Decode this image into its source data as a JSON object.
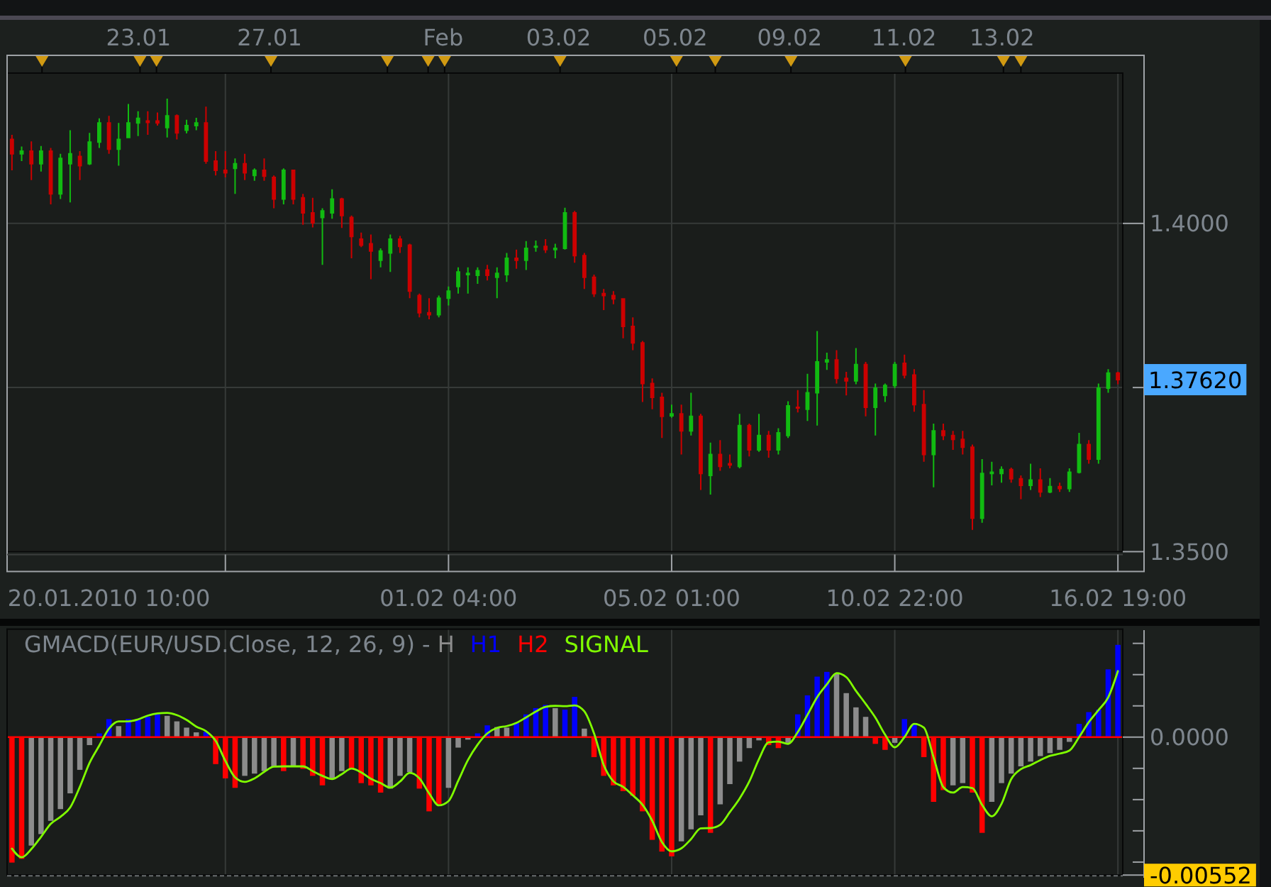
{
  "chart_data": [
    {
      "type": "candlestick",
      "categories": [
        null,
        null,
        null,
        null,
        null,
        null,
        null,
        null,
        null,
        null,
        "20.01.2010 10:00",
        null,
        null,
        null,
        null,
        null,
        null,
        null,
        null,
        null,
        null,
        null,
        null,
        null,
        null,
        null,
        null,
        null,
        null,
        null,
        null,
        null,
        null,
        null,
        null,
        null,
        null,
        null,
        null,
        null,
        null,
        null,
        null,
        null,
        null,
        "01.02 04:00",
        null,
        null,
        null,
        null,
        null,
        null,
        null,
        null,
        null,
        null,
        null,
        null,
        null,
        null,
        null,
        null,
        null,
        null,
        null,
        null,
        null,
        null,
        "05.02 01:00",
        null,
        null,
        null,
        null,
        null,
        null,
        null,
        null,
        null,
        null,
        null,
        null,
        null,
        null,
        null,
        null,
        null,
        null,
        null,
        null,
        null,
        null,
        "10.02 22:00",
        null,
        null,
        null,
        null,
        null,
        null,
        null,
        null,
        null,
        null,
        null,
        null,
        null,
        null,
        null,
        null,
        null,
        null,
        null,
        null,
        null,
        null,
        "16.02 19:00"
      ],
      "ohlc": [
        [
          1.4128,
          1.4135,
          1.4081,
          1.4106
        ],
        [
          1.4106,
          1.4117,
          1.4095,
          1.411
        ],
        [
          1.411,
          1.4125,
          1.4066,
          1.4091
        ],
        [
          1.4091,
          1.4118,
          1.4079,
          1.411
        ],
        [
          1.411,
          1.4115,
          1.4029,
          1.4045
        ],
        [
          1.4045,
          1.4106,
          1.4037,
          1.4099
        ],
        [
          1.4091,
          1.4142,
          1.4032,
          1.4106
        ],
        [
          1.4102,
          1.411,
          1.4066,
          1.4088
        ],
        [
          1.4091,
          1.4138,
          1.4089,
          1.4124
        ],
        [
          1.4124,
          1.416,
          1.4115,
          1.4153
        ],
        [
          1.4153,
          1.4164,
          1.4106,
          1.4113
        ],
        [
          1.4113,
          1.4153,
          1.4088,
          1.4128
        ],
        [
          1.4131,
          1.4182,
          1.413,
          1.4153
        ],
        [
          1.4153,
          1.4171,
          1.4133,
          1.416
        ],
        [
          1.4156,
          1.4171,
          1.4135,
          1.4154
        ],
        [
          1.4156,
          1.4169,
          1.4149,
          1.4153
        ],
        [
          1.4146,
          1.419,
          1.4131,
          1.4164
        ],
        [
          1.4164,
          1.4166,
          1.4128,
          1.4138
        ],
        [
          1.4142,
          1.4158,
          1.4137,
          1.4149
        ],
        [
          1.4149,
          1.4161,
          1.4142,
          1.4153
        ],
        [
          1.4153,
          1.4178,
          1.4091,
          1.4095
        ],
        [
          1.4095,
          1.411,
          1.4073,
          1.4081
        ],
        [
          1.4081,
          1.411,
          1.407,
          1.4077
        ],
        [
          1.4084,
          1.4099,
          1.4045,
          1.4091
        ],
        [
          1.4091,
          1.4106,
          1.4066,
          1.4077
        ],
        [
          1.4073,
          1.4084,
          1.4065,
          1.4081
        ],
        [
          1.4081,
          1.4099,
          1.4065,
          1.4072
        ],
        [
          1.407,
          1.4073,
          1.4023,
          1.4037
        ],
        [
          1.4037,
          1.4084,
          1.4029,
          1.4081
        ],
        [
          1.4081,
          1.4082,
          1.4029,
          1.4037
        ],
        [
          1.4039,
          1.4045,
          1.3998,
          1.4016
        ],
        [
          1.4016,
          1.4039,
          1.3994,
          1.4001
        ],
        [
          1.4009,
          1.4023,
          1.3937,
          1.4019
        ],
        [
          1.4016,
          1.4052,
          1.4007,
          1.4037
        ],
        [
          1.4037,
          1.4039,
          1.3993,
          1.4012
        ],
        [
          1.4009,
          1.4012,
          1.3947,
          1.398
        ],
        [
          1.3976,
          1.3986,
          1.3964,
          1.3967
        ],
        [
          1.3969,
          1.3983,
          1.3915,
          1.3958
        ],
        [
          1.3944,
          1.3962,
          1.3933,
          1.3958
        ],
        [
          1.3955,
          1.3983,
          1.3926,
          1.3976
        ],
        [
          1.3976,
          1.3981,
          1.3955,
          1.3965
        ],
        [
          1.3967,
          1.3969,
          1.3886,
          1.3897
        ],
        [
          1.389,
          1.3893,
          1.3857,
          1.3864
        ],
        [
          1.3864,
          1.3886,
          1.3854,
          1.3861
        ],
        [
          1.3861,
          1.389,
          1.3857,
          1.3886
        ],
        [
          1.3886,
          1.3904,
          1.3875,
          1.3897
        ],
        [
          1.3904,
          1.3933,
          1.3893,
          1.3926
        ],
        [
          1.3922,
          1.3933,
          1.3893,
          1.3924
        ],
        [
          1.3921,
          1.3933,
          1.3908,
          1.3928
        ],
        [
          1.3929,
          1.3937,
          1.3913,
          1.3921
        ],
        [
          1.3918,
          1.3933,
          1.3886,
          1.3924
        ],
        [
          1.3922,
          1.3955,
          1.3911,
          1.3947
        ],
        [
          1.3947,
          1.396,
          1.3931,
          1.3944
        ],
        [
          1.3944,
          1.3973,
          1.3929,
          1.3962
        ],
        [
          1.3964,
          1.3974,
          1.3957,
          1.3965
        ],
        [
          1.3965,
          1.3976,
          1.3955,
          1.396
        ],
        [
          1.396,
          1.3969,
          1.3947,
          1.3962
        ],
        [
          1.3962,
          1.4024,
          1.396,
          1.4016
        ],
        [
          1.4016,
          1.4019,
          1.394,
          1.3951
        ],
        [
          1.3951,
          1.3955,
          1.39,
          1.3918
        ],
        [
          1.3918,
          1.3922,
          1.3888,
          1.3893
        ],
        [
          1.3893,
          1.39,
          1.3868,
          1.389
        ],
        [
          1.389,
          1.3897,
          1.3877,
          1.3885
        ],
        [
          1.3885,
          1.3886,
          1.3825,
          1.3843
        ],
        [
          1.3843,
          1.3857,
          1.3807,
          1.3818
        ],
        [
          1.3818,
          1.3821,
          1.3728,
          1.3756
        ],
        [
          1.3756,
          1.3764,
          1.3717,
          1.3735
        ],
        [
          1.3735,
          1.3742,
          1.3673,
          1.3706
        ],
        [
          1.3707,
          1.3724,
          1.3704,
          1.371
        ],
        [
          1.371,
          1.3724,
          1.3648,
          1.3684
        ],
        [
          1.3684,
          1.3742,
          1.3677,
          1.3706
        ],
        [
          1.3706,
          1.371,
          1.3594,
          1.3619
        ],
        [
          1.3616,
          1.3666,
          1.3587,
          1.3648
        ],
        [
          1.3648,
          1.367,
          1.3623,
          1.363
        ],
        [
          1.3634,
          1.3648,
          1.3627,
          1.3632
        ],
        [
          1.363,
          1.371,
          1.3627,
          1.3692
        ],
        [
          1.3692,
          1.3695,
          1.3645,
          1.3655
        ],
        [
          1.3655,
          1.371,
          1.3652,
          1.3677
        ],
        [
          1.3677,
          1.3684,
          1.3643,
          1.3655
        ],
        [
          1.3655,
          1.3688,
          1.3648,
          1.3681
        ],
        [
          1.3677,
          1.3729,
          1.3673,
          1.3722
        ],
        [
          1.372,
          1.3746,
          1.3712,
          1.3719
        ],
        [
          1.3717,
          1.3771,
          1.3699,
          1.3742
        ],
        [
          1.3742,
          1.3836,
          1.3692,
          1.3789
        ],
        [
          1.3789,
          1.3803,
          1.3777,
          1.3792
        ],
        [
          1.3792,
          1.3807,
          1.3756,
          1.3764
        ],
        [
          1.3764,
          1.3774,
          1.3738,
          1.376
        ],
        [
          1.376,
          1.381,
          1.3755,
          1.3785
        ],
        [
          1.3785,
          1.3789,
          1.3706,
          1.372
        ],
        [
          1.372,
          1.3756,
          1.3677,
          1.3749
        ],
        [
          1.3738,
          1.3756,
          1.3728,
          1.3753
        ],
        [
          1.3753,
          1.3789,
          1.3749,
          1.3785
        ],
        [
          1.3787,
          1.38,
          1.3764,
          1.3769
        ],
        [
          1.3769,
          1.3778,
          1.3713,
          1.3724
        ],
        [
          1.3724,
          1.3746,
          1.3637,
          1.3648
        ],
        [
          1.3648,
          1.3695,
          1.3598,
          1.3684
        ],
        [
          1.3684,
          1.3695,
          1.367,
          1.3677
        ],
        [
          1.3677,
          1.3684,
          1.3655,
          1.3671
        ],
        [
          1.3671,
          1.3684,
          1.3648,
          1.3659
        ],
        [
          1.3659,
          1.3663,
          1.3533,
          1.3551
        ],
        [
          1.3551,
          1.3641,
          1.3544,
          1.3619
        ],
        [
          1.3619,
          1.3637,
          1.3601,
          1.3621
        ],
        [
          1.3619,
          1.363,
          1.3605,
          1.3625
        ],
        [
          1.3625,
          1.3628,
          1.3605,
          1.3611
        ],
        [
          1.3611,
          1.3616,
          1.358,
          1.3601
        ],
        [
          1.3601,
          1.3634,
          1.3594,
          1.3609
        ],
        [
          1.3609,
          1.3627,
          1.3583,
          1.3591
        ],
        [
          1.3591,
          1.3612,
          1.3589,
          1.3599
        ],
        [
          1.3599,
          1.3605,
          1.3591,
          1.3596
        ],
        [
          1.3596,
          1.3627,
          1.3591,
          1.3621
        ],
        [
          1.3621,
          1.3681,
          1.3619,
          1.3663
        ],
        [
          1.3663,
          1.367,
          1.3634,
          1.3641
        ],
        [
          1.3641,
          1.3756,
          1.3634,
          1.3749
        ],
        [
          1.3749,
          1.3778,
          1.3742,
          1.3772
        ],
        [
          1.3772,
          1.3774,
          1.3755,
          1.3762
        ]
      ],
      "colors": [
        "#cc0000",
        "#11bb11",
        "#cc0000",
        "#11bb11",
        "#cc0000",
        "#11bb11",
        "#11bb11",
        "#cc0000",
        "#11bb11",
        "#11bb11",
        "#cc0000",
        "#11bb11",
        "#11bb11",
        "#11bb11",
        "#cc0000",
        "#cc0000",
        "#11bb11",
        "#cc0000",
        "#11bb11",
        "#11bb11",
        "#cc0000",
        "#cc0000",
        "#cc0000",
        "#11bb11",
        "#cc0000",
        "#11bb11",
        "#cc0000",
        "#cc0000",
        "#11bb11",
        "#cc0000",
        "#cc0000",
        "#cc0000",
        "#11bb11",
        "#11bb11",
        "#cc0000",
        "#cc0000",
        "#cc0000",
        "#cc0000",
        "#11bb11",
        "#11bb11",
        "#cc0000",
        "#cc0000",
        "#cc0000",
        "#cc0000",
        "#11bb11",
        "#11bb11",
        "#11bb11",
        "#11bb11",
        "#11bb11",
        "#cc0000",
        "#11bb11",
        "#11bb11",
        "#cc0000",
        "#11bb11",
        "#11bb11",
        "#cc0000",
        "#11bb11",
        "#11bb11",
        "#cc0000",
        "#cc0000",
        "#cc0000",
        "#cc0000",
        "#cc0000",
        "#cc0000",
        "#cc0000",
        "#cc0000",
        "#cc0000",
        "#cc0000",
        "#11bb11",
        "#cc0000",
        "#11bb11",
        "#cc0000",
        "#11bb11",
        "#cc0000",
        "#cc0000",
        "#11bb11",
        "#cc0000",
        "#11bb11",
        "#cc0000",
        "#11bb11",
        "#11bb11",
        "#cc0000",
        "#11bb11",
        "#11bb11",
        "#11bb11",
        "#cc0000",
        "#cc0000",
        "#11bb11",
        "#cc0000",
        "#11bb11",
        "#11bb11",
        "#11bb11",
        "#cc0000",
        "#cc0000",
        "#cc0000",
        "#11bb11",
        "#cc0000",
        "#cc0000",
        "#cc0000",
        "#cc0000",
        "#11bb11",
        "#11bb11",
        "#11bb11",
        "#cc0000",
        "#cc0000",
        "#11bb11",
        "#cc0000",
        "#11bb11",
        "#cc0000",
        "#11bb11",
        "#11bb11",
        "#cc0000",
        "#11bb11",
        "#11bb11",
        "#cc0000"
      ],
      "ylim": [
        1.35,
        1.4229
      ],
      "yticks": [
        {
          "value": 1.35,
          "label": "1.3500"
        },
        {
          "value": 1.375,
          "label": null
        },
        {
          "value": 1.4,
          "label": "1.4000"
        }
      ],
      "grid": true,
      "annotations": [
        "1.37620",
        "23.01",
        "27.01",
        "Feb",
        "03.02",
        "05.02",
        "09.02",
        "11.02",
        "13.02"
      ]
    },
    {
      "type": "bar",
      "title": "GMACD(EUR/USD.Close, 12, 26, 9) -",
      "categories": [
        null,
        null,
        null,
        null,
        null,
        null,
        null,
        null,
        null,
        null,
        null,
        null,
        null,
        null,
        null,
        null,
        null,
        null,
        null,
        null,
        null,
        null,
        null,
        null,
        null,
        null,
        null,
        null,
        null,
        null,
        null,
        null,
        null,
        null,
        null,
        null,
        null,
        null,
        null,
        null,
        null,
        null,
        null,
        null,
        null,
        null,
        null,
        null,
        null,
        null,
        null,
        null,
        null,
        null,
        null,
        null,
        null,
        null,
        null,
        null,
        null,
        null,
        null,
        null,
        null,
        null,
        null,
        null,
        null,
        null,
        null,
        null,
        null,
        null,
        null,
        null,
        null,
        null,
        null,
        null,
        null,
        null,
        null,
        null,
        null,
        null,
        null,
        null,
        null,
        null,
        null,
        null,
        null,
        null,
        null,
        null,
        null,
        null,
        null,
        null,
        null,
        null,
        null,
        null,
        null,
        null,
        null,
        null,
        null,
        null,
        null,
        null,
        null,
        null,
        null
      ],
      "series": [
        {
          "name": "H",
          "color": "#8c8c8c",
          "values": [
            null,
            null,
            -0.00434,
            -0.00388,
            -0.00335,
            -0.00288,
            -0.00225,
            -0.00131,
            -0.00032,
            null,
            null,
            0.00044,
            null,
            null,
            null,
            null,
            0.00085,
            0.00063,
            0.00038,
            0.00019,
            null,
            null,
            null,
            null,
            -0.00155,
            -0.00146,
            -0.00136,
            -0.00117,
            null,
            -0.00117,
            null,
            null,
            null,
            -0.00165,
            -0.00136,
            null,
            null,
            null,
            null,
            -0.00206,
            -0.00155,
            -0.0014,
            null,
            null,
            null,
            -0.00203,
            -0.00042,
            -0.0001,
            null,
            null,
            0.0004,
            0.00038,
            null,
            null,
            null,
            null,
            0.00116,
            null,
            null,
            0.00034,
            null,
            null,
            null,
            null,
            null,
            null,
            null,
            null,
            null,
            -0.00417,
            -0.00369,
            -0.00313,
            null,
            -0.00269,
            -0.00188,
            -0.00098,
            -0.00044,
            -0.00013,
            null,
            null,
            -0.00023,
            null,
            null,
            null,
            null,
            0.00252,
            0.00176,
            0.00119,
            0.00081,
            null,
            null,
            -0.00023,
            null,
            null,
            null,
            null,
            null,
            -0.00193,
            -0.00184,
            null,
            null,
            -0.00259,
            -0.00184,
            -0.00146,
            -0.00117,
            -0.00098,
            -0.00076,
            -0.00064,
            -0.00051,
            -0.00019,
            null,
            null,
            null,
            null,
            null
          ]
        },
        {
          "name": "H1",
          "color": "#0000ff",
          "values": [
            null,
            null,
            null,
            null,
            null,
            null,
            null,
            null,
            null,
            0.00015,
            0.00072,
            null,
            0.00072,
            0.00072,
            0.00081,
            0.00091,
            null,
            null,
            null,
            null,
            0.00021,
            null,
            null,
            null,
            null,
            null,
            null,
            null,
            null,
            null,
            null,
            null,
            null,
            null,
            null,
            null,
            null,
            null,
            null,
            null,
            null,
            null,
            null,
            null,
            null,
            null,
            null,
            null,
            0.00015,
            0.00047,
            null,
            null,
            0.00057,
            0.00091,
            0.00116,
            0.00129,
            null,
            0.0011,
            0.00161,
            null,
            null,
            null,
            null,
            null,
            null,
            null,
            null,
            null,
            null,
            null,
            null,
            null,
            null,
            null,
            null,
            null,
            null,
            null,
            null,
            null,
            null,
            0.00091,
            0.00167,
            0.00242,
            0.00261,
            null,
            null,
            null,
            null,
            null,
            null,
            null,
            0.00072,
            0.00053,
            null,
            null,
            null,
            null,
            null,
            null,
            null,
            null,
            null,
            null,
            null,
            null,
            null,
            null,
            null,
            null,
            0.00053,
            0.001,
            0.0011,
            0.00271,
            0.00369
          ]
        },
        {
          "name": "H2",
          "color": "#ff0000",
          "values": [
            -0.00502,
            -0.00487,
            null,
            null,
            null,
            null,
            null,
            null,
            null,
            null,
            null,
            null,
            null,
            null,
            null,
            null,
            null,
            null,
            null,
            null,
            null,
            -0.00108,
            -0.00165,
            -0.00203,
            null,
            null,
            null,
            null,
            -0.00136,
            null,
            -0.00127,
            -0.00155,
            -0.00193,
            null,
            null,
            -0.00127,
            -0.00184,
            -0.00193,
            -0.00222,
            null,
            null,
            null,
            -0.00206,
            -0.00297,
            -0.00269,
            null,
            null,
            null,
            null,
            null,
            null,
            null,
            null,
            null,
            null,
            null,
            null,
            null,
            null,
            null,
            -0.0008,
            -0.00155,
            -0.00193,
            -0.00216,
            -0.00235,
            -0.00297,
            -0.00411,
            -0.00458,
            -0.00477,
            null,
            null,
            null,
            -0.00383,
            null,
            null,
            null,
            null,
            null,
            -0.00032,
            -0.00044,
            null,
            null,
            null,
            null,
            null,
            null,
            null,
            null,
            null,
            -0.00027,
            -0.00051,
            null,
            null,
            null,
            -0.0008,
            -0.00259,
            -0.00212,
            null,
            null,
            -0.00222,
            -0.00383,
            null,
            null,
            null,
            null,
            null,
            null,
            null,
            null,
            null,
            null,
            null,
            null,
            null,
            null
          ]
        },
        {
          "name": "SIGNAL",
          "type": "line",
          "color": "#80ff00",
          "values": [
            -0.00446,
            -0.00481,
            -0.00448,
            -0.00399,
            -0.00347,
            -0.00319,
            -0.00282,
            -0.00199,
            -0.00103,
            -0.00034,
            0.00034,
            0.00063,
            0.00063,
            0.00071,
            0.00086,
            0.00095,
            0.00097,
            0.00088,
            0.00069,
            0.00042,
            0.00024,
            -0.00015,
            -0.00095,
            -0.00161,
            -0.00179,
            -0.00165,
            -0.00139,
            -0.00118,
            -0.00117,
            -0.00117,
            -0.00117,
            -0.00136,
            -0.00155,
            -0.00168,
            -0.00148,
            -0.00126,
            -0.00141,
            -0.00167,
            -0.00184,
            -0.00202,
            -0.00178,
            -0.00143,
            -0.00165,
            -0.00225,
            -0.00273,
            -0.00256,
            -0.00175,
            -0.00092,
            -0.0003,
            0.00015,
            0.00037,
            0.00044,
            0.00057,
            0.00079,
            0.00102,
            0.00121,
            0.00125,
            0.00124,
            0.00127,
            0.00103,
            0.00015,
            -0.00112,
            -0.00177,
            -0.00199,
            -0.00233,
            -0.00271,
            -0.00335,
            -0.0042,
            -0.00457,
            -0.00445,
            -0.00408,
            -0.00365,
            -0.00364,
            -0.00351,
            -0.003,
            -0.00246,
            -0.00178,
            -0.00088,
            -0.00021,
            -0.00018,
            -0.00027,
            0.0002,
            0.00089,
            0.0016,
            0.00211,
            0.00256,
            0.0024,
            0.00185,
            0.00133,
            0.00078,
            0.0001,
            -0.00041,
            0,
            0.00053,
            0.00038,
            -0.00081,
            -0.002,
            -0.00222,
            -0.002,
            -0.00204,
            -0.00271,
            -0.00317,
            -0.00267,
            -0.00168,
            -0.00128,
            -0.00112,
            -0.00092,
            -0.00075,
            -0.00066,
            -0.00054,
            0,
            0.0006,
            0.00108,
            0.00159,
            0.00264
          ]
        }
      ],
      "ylim": [
        -0.00552,
        0.00432
      ],
      "yticks": [
        {
          "value": -0.00552,
          "label": "-0.00552"
        },
        {
          "value": -0.005,
          "label": null
        },
        {
          "value": -0.00375,
          "label": null
        },
        {
          "value": -0.0025,
          "label": null
        },
        {
          "value": -0.00125,
          "label": null
        },
        {
          "value": 0,
          "label": "0.0000"
        },
        {
          "value": 0.00125,
          "label": null
        },
        {
          "value": 0.0025,
          "label": null
        },
        {
          "value": 0.00375,
          "label": null
        }
      ],
      "tick_labels": "y",
      "grid": "x",
      "legend": "top left",
      "ref_lines": [
        {
          "axis": "y",
          "value": 0,
          "color": "#ff0000"
        }
      ]
    }
  ]
}
